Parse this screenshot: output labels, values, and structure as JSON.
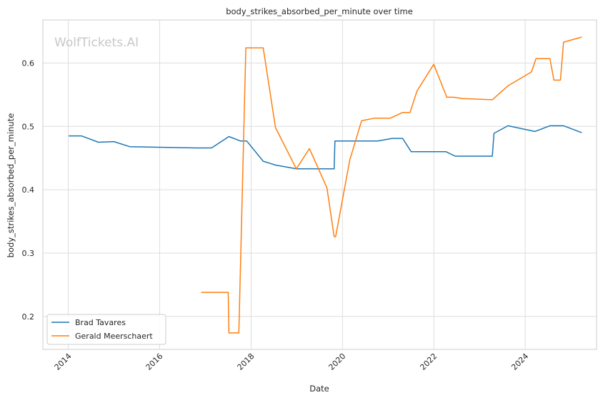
{
  "chart_data": {
    "type": "line",
    "title": "body_strikes_absorbed_per_minute over time",
    "xlabel": "Date",
    "ylabel": "body_strikes_absorbed_per_minute",
    "watermark": "WolfTickets.AI",
    "x_ticks": [
      "2014",
      "2016",
      "2018",
      "2020",
      "2022",
      "2024"
    ],
    "y_ticks": [
      "0.2",
      "0.3",
      "0.4",
      "0.5",
      "0.6"
    ],
    "xlim": [
      "2013-06-12",
      "2025-07-24"
    ],
    "ylim": [
      0.148,
      0.668
    ],
    "grid": true,
    "legend_position": "lower-left",
    "series": [
      {
        "name": "Brad Tavares",
        "color": "#1f77b4",
        "points": [
          [
            "2014-01-04",
            0.485
          ],
          [
            "2014-04-16",
            0.485
          ],
          [
            "2014-08-30",
            0.475
          ],
          [
            "2015-01-01",
            0.476
          ],
          [
            "2015-05-07",
            0.468
          ],
          [
            "2016-10-22",
            0.466
          ],
          [
            "2017-02-19",
            0.466
          ],
          [
            "2017-07-08",
            0.484
          ],
          [
            "2017-10-08",
            0.477
          ],
          [
            "2017-11-27",
            0.477
          ],
          [
            "2018-04-08",
            0.445
          ],
          [
            "2018-07-15",
            0.439
          ],
          [
            "2018-12-29",
            0.433
          ],
          [
            "2019-10-27",
            0.433
          ],
          [
            "2019-11-02",
            0.477
          ],
          [
            "2020-10-08",
            0.477
          ],
          [
            "2021-02-02",
            0.481
          ],
          [
            "2021-04-26",
            0.481
          ],
          [
            "2021-07-04",
            0.46
          ],
          [
            "2022-04-08",
            0.46
          ],
          [
            "2022-06-20",
            0.453
          ],
          [
            "2023-04-13",
            0.453
          ],
          [
            "2023-04-26",
            0.489
          ],
          [
            "2023-08-16",
            0.501
          ],
          [
            "2024-03-18",
            0.492
          ],
          [
            "2024-07-16",
            0.501
          ],
          [
            "2024-11-02",
            0.501
          ],
          [
            "2025-03-28",
            0.49
          ]
        ]
      },
      {
        "name": "Gerald Meerschaert",
        "color": "#ff7f0e",
        "points": [
          [
            "2016-11-29",
            0.238
          ],
          [
            "2017-07-02",
            0.238
          ],
          [
            "2017-07-08",
            0.174
          ],
          [
            "2017-09-25",
            0.174
          ],
          [
            "2017-11-20",
            0.624
          ],
          [
            "2018-04-08",
            0.624
          ],
          [
            "2018-07-15",
            0.498
          ],
          [
            "2018-12-29",
            0.433
          ],
          [
            "2019-04-12",
            0.465
          ],
          [
            "2019-08-30",
            0.403
          ],
          [
            "2019-10-27",
            0.326
          ],
          [
            "2019-11-08",
            0.326
          ],
          [
            "2020-02-29",
            0.447
          ],
          [
            "2020-06-02",
            0.509
          ],
          [
            "2020-09-14",
            0.513
          ],
          [
            "2021-01-19",
            0.513
          ],
          [
            "2021-04-26",
            0.522
          ],
          [
            "2021-06-24",
            0.522
          ],
          [
            "2021-08-19",
            0.556
          ],
          [
            "2021-12-31",
            0.598
          ],
          [
            "2022-04-14",
            0.546
          ],
          [
            "2022-06-08",
            0.546
          ],
          [
            "2022-08-18",
            0.544
          ],
          [
            "2023-04-13",
            0.542
          ],
          [
            "2023-08-16",
            0.564
          ],
          [
            "2024-02-20",
            0.586
          ],
          [
            "2024-03-27",
            0.607
          ],
          [
            "2024-07-16",
            0.607
          ],
          [
            "2024-08-17",
            0.573
          ],
          [
            "2024-10-08",
            0.573
          ],
          [
            "2024-11-02",
            0.633
          ],
          [
            "2025-03-28",
            0.641
          ]
        ]
      }
    ]
  }
}
